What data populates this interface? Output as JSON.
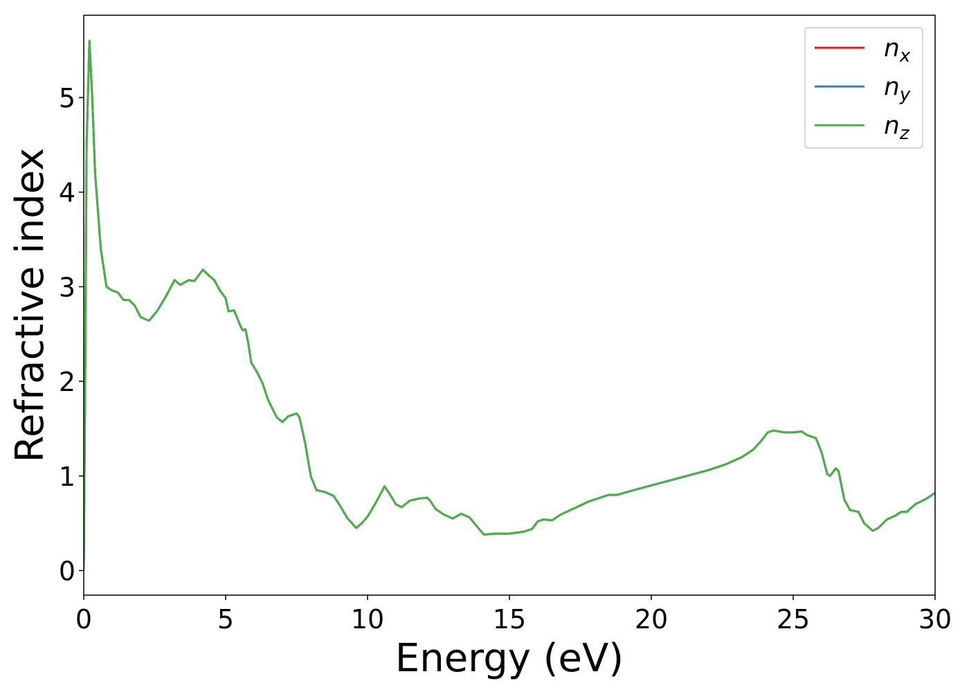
{
  "chart_data": {
    "type": "line",
    "xlabel": "Energy (eV)",
    "ylabel": "Refractive index",
    "xlim": [
      0,
      30
    ],
    "xticks": [
      0,
      5,
      10,
      15,
      20,
      25,
      30
    ],
    "ylim": [
      -0.26,
      5.87
    ],
    "yticks": [
      0,
      1,
      2,
      3,
      4,
      5
    ],
    "legend": "upper right",
    "grid": false,
    "x": [
      0,
      0.05,
      0.1,
      0.2,
      0.3,
      0.4,
      0.6,
      0.8,
      1.0,
      1.2,
      1.4,
      1.6,
      1.8,
      2.0,
      2.3,
      2.6,
      2.9,
      3.2,
      3.4,
      3.7,
      3.9,
      4.2,
      4.4,
      4.6,
      4.8,
      5.0,
      5.1,
      5.3,
      5.5,
      5.6,
      5.7,
      5.8,
      5.9,
      6.1,
      6.3,
      6.5,
      6.8,
      7.0,
      7.2,
      7.5,
      7.6,
      7.8,
      8.0,
      8.2,
      8.5,
      8.8,
      9.0,
      9.3,
      9.6,
      9.8,
      10.0,
      10.3,
      10.6,
      10.8,
      11.0,
      11.2,
      11.5,
      11.8,
      12.1,
      12.2,
      12.4,
      12.7,
      13.0,
      13.3,
      13.6,
      13.9,
      14.1,
      14.5,
      15.0,
      15.5,
      15.8,
      16.0,
      16.2,
      16.5,
      16.8,
      17.3,
      17.8,
      18.3,
      18.5,
      18.8,
      19.5,
      20,
      21,
      22,
      22.6,
      23.2,
      23.6,
      23.9,
      24.1,
      24.3,
      24.7,
      25.0,
      25.3,
      25.5,
      25.8,
      26.0,
      26.2,
      26.3,
      26.5,
      26.6,
      26.8,
      27.0,
      27.3,
      27.5,
      27.8,
      28.0,
      28.3,
      28.6,
      28.8,
      29.0,
      29.3,
      29.7,
      30.0
    ],
    "series": [
      {
        "name": "nx",
        "color": "#e41a1c",
        "values": [
          0,
          2.0,
          4.5,
          5.6,
          5.0,
          4.2,
          3.4,
          3.0,
          2.96,
          2.94,
          2.86,
          2.86,
          2.8,
          2.68,
          2.64,
          2.75,
          2.9,
          3.07,
          3.02,
          3.07,
          3.06,
          3.18,
          3.12,
          3.07,
          2.96,
          2.88,
          2.74,
          2.75,
          2.6,
          2.54,
          2.55,
          2.4,
          2.2,
          2.1,
          1.98,
          1.8,
          1.62,
          1.57,
          1.63,
          1.66,
          1.62,
          1.35,
          1.0,
          0.85,
          0.83,
          0.79,
          0.7,
          0.55,
          0.45,
          0.5,
          0.57,
          0.72,
          0.89,
          0.8,
          0.7,
          0.67,
          0.74,
          0.76,
          0.77,
          0.74,
          0.65,
          0.59,
          0.55,
          0.6,
          0.56,
          0.45,
          0.38,
          0.39,
          0.39,
          0.41,
          0.44,
          0.52,
          0.54,
          0.53,
          0.59,
          0.66,
          0.73,
          0.78,
          0.8,
          0.8,
          0.86,
          0.9,
          0.98,
          1.06,
          1.12,
          1.2,
          1.28,
          1.38,
          1.46,
          1.48,
          1.46,
          1.46,
          1.47,
          1.43,
          1.4,
          1.25,
          1.02,
          1.0,
          1.08,
          1.05,
          0.75,
          0.64,
          0.62,
          0.5,
          0.42,
          0.45,
          0.54,
          0.58,
          0.62,
          0.62,
          0.7,
          0.76,
          0.82
        ]
      },
      {
        "name": "ny",
        "color": "#377eb8",
        "values": [
          0,
          2.0,
          4.5,
          5.6,
          5.0,
          4.2,
          3.4,
          3.0,
          2.96,
          2.94,
          2.86,
          2.86,
          2.8,
          2.68,
          2.64,
          2.75,
          2.9,
          3.07,
          3.02,
          3.07,
          3.06,
          3.18,
          3.12,
          3.07,
          2.96,
          2.88,
          2.74,
          2.75,
          2.6,
          2.54,
          2.55,
          2.4,
          2.2,
          2.1,
          1.98,
          1.8,
          1.62,
          1.57,
          1.63,
          1.66,
          1.62,
          1.35,
          1.0,
          0.85,
          0.83,
          0.79,
          0.7,
          0.55,
          0.45,
          0.5,
          0.57,
          0.72,
          0.89,
          0.8,
          0.7,
          0.67,
          0.74,
          0.76,
          0.77,
          0.74,
          0.65,
          0.59,
          0.55,
          0.6,
          0.56,
          0.45,
          0.38,
          0.39,
          0.39,
          0.41,
          0.44,
          0.52,
          0.54,
          0.53,
          0.59,
          0.66,
          0.73,
          0.78,
          0.8,
          0.8,
          0.86,
          0.9,
          0.98,
          1.06,
          1.12,
          1.2,
          1.28,
          1.38,
          1.46,
          1.48,
          1.46,
          1.46,
          1.47,
          1.43,
          1.4,
          1.25,
          1.02,
          1.0,
          1.08,
          1.05,
          0.75,
          0.64,
          0.62,
          0.5,
          0.42,
          0.45,
          0.54,
          0.58,
          0.62,
          0.62,
          0.7,
          0.76,
          0.82
        ]
      },
      {
        "name": "nz",
        "color": "#4daf4a",
        "values": [
          0,
          2.0,
          4.5,
          5.6,
          5.0,
          4.2,
          3.4,
          3.0,
          2.96,
          2.94,
          2.86,
          2.86,
          2.8,
          2.68,
          2.64,
          2.75,
          2.9,
          3.07,
          3.02,
          3.07,
          3.06,
          3.18,
          3.12,
          3.07,
          2.96,
          2.88,
          2.74,
          2.75,
          2.6,
          2.54,
          2.55,
          2.4,
          2.2,
          2.1,
          1.98,
          1.8,
          1.62,
          1.57,
          1.63,
          1.66,
          1.62,
          1.35,
          1.0,
          0.85,
          0.83,
          0.79,
          0.7,
          0.55,
          0.45,
          0.5,
          0.57,
          0.72,
          0.89,
          0.8,
          0.7,
          0.67,
          0.74,
          0.76,
          0.77,
          0.74,
          0.65,
          0.59,
          0.55,
          0.6,
          0.56,
          0.45,
          0.38,
          0.39,
          0.39,
          0.41,
          0.44,
          0.52,
          0.54,
          0.53,
          0.59,
          0.66,
          0.73,
          0.78,
          0.8,
          0.8,
          0.86,
          0.9,
          0.98,
          1.06,
          1.12,
          1.2,
          1.28,
          1.38,
          1.46,
          1.48,
          1.46,
          1.46,
          1.47,
          1.43,
          1.4,
          1.25,
          1.02,
          1.0,
          1.08,
          1.05,
          0.75,
          0.64,
          0.62,
          0.5,
          0.42,
          0.45,
          0.54,
          0.58,
          0.62,
          0.62,
          0.7,
          0.76,
          0.82
        ]
      }
    ]
  }
}
